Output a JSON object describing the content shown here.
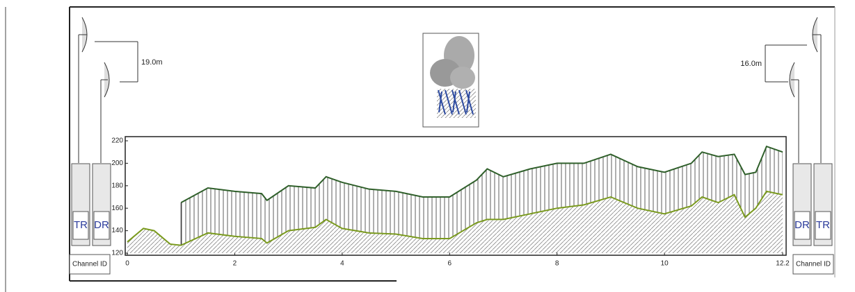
{
  "chart_data": {
    "type": "terrain-profile",
    "x": [
      0,
      0.3,
      0.5,
      0.8,
      1,
      1.5,
      2,
      2.5,
      2.6,
      3,
      3.5,
      3.7,
      4,
      4.5,
      5,
      5.5,
      6,
      6.5,
      6.7,
      7,
      7.5,
      8,
      8.5,
      9,
      9.5,
      10,
      10.5,
      10.7,
      11,
      11.3,
      11.5,
      11.7,
      11.9,
      12.2
    ],
    "series": [
      {
        "color": "#2f5f2a",
        "values": [
          null,
          null,
          null,
          null,
          165,
          178,
          175,
          173,
          167,
          180,
          178,
          188,
          183,
          177,
          175,
          170,
          170,
          185,
          195,
          188,
          195,
          200,
          200,
          208,
          197,
          192,
          200,
          210,
          206,
          208,
          190,
          192,
          215,
          210
        ]
      },
      {
        "color": "#7a9a1e",
        "values": [
          130,
          142,
          140,
          128,
          127,
          138,
          135,
          133,
          129,
          140,
          143,
          150,
          142,
          138,
          137,
          133,
          133,
          147,
          150,
          150,
          155,
          160,
          163,
          170,
          160,
          155,
          162,
          170,
          165,
          172,
          152,
          160,
          175,
          172
        ]
      }
    ],
    "xlim": [
      0,
      12.2
    ],
    "xticks": [
      0,
      2,
      4,
      6,
      8,
      10,
      12.2
    ],
    "ylim": [
      120,
      220
    ],
    "yticks": [
      120,
      140,
      160,
      180,
      200,
      220
    ]
  },
  "link": {
    "left": {
      "height": "19.0m",
      "units": [
        "TR",
        "DR"
      ],
      "channel": "Channel ID"
    },
    "right": {
      "height": "16.0m",
      "units": [
        "DR",
        "TR"
      ],
      "channel": "Channel ID"
    }
  }
}
